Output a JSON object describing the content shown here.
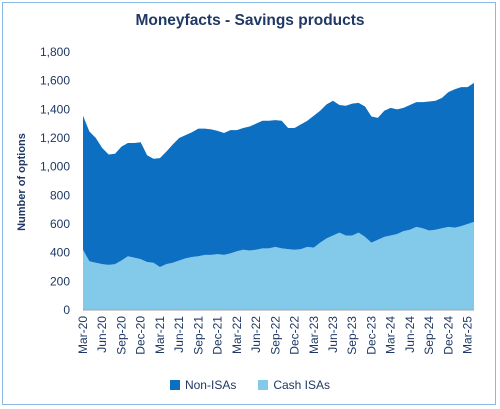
{
  "chart_data": {
    "type": "area",
    "stacked": true,
    "title": "Moneyfacts - Savings products",
    "ylabel": "Number of options",
    "xlabel": "",
    "ylim": [
      0,
      1800
    ],
    "yticks": [
      0,
      200,
      400,
      600,
      800,
      1000,
      1200,
      1400,
      1600,
      1800
    ],
    "ytick_labels": [
      "0",
      "200",
      "400",
      "600",
      "800",
      "1,000",
      "1,200",
      "1,400",
      "1,600",
      "1,800"
    ],
    "x_tick_labels": [
      "Mar-20",
      "Jun-20",
      "Sep-20",
      "Dec-20",
      "Mar-21",
      "Jun-21",
      "Sep-21",
      "Dec-21",
      "Mar-22",
      "Jun-22",
      "Sep-22",
      "Dec-22",
      "Mar-23",
      "Jun-23",
      "Sep-23",
      "Dec-23",
      "Mar-24",
      "Jun-24",
      "Sep-24",
      "Dec-24",
      "Mar-25"
    ],
    "x": [
      "Mar-20",
      "Apr-20",
      "May-20",
      "Jun-20",
      "Jul-20",
      "Aug-20",
      "Sep-20",
      "Oct-20",
      "Nov-20",
      "Dec-20",
      "Jan-21",
      "Feb-21",
      "Mar-21",
      "Apr-21",
      "May-21",
      "Jun-21",
      "Jul-21",
      "Aug-21",
      "Sep-21",
      "Oct-21",
      "Nov-21",
      "Dec-21",
      "Jan-22",
      "Feb-22",
      "Mar-22",
      "Apr-22",
      "May-22",
      "Jun-22",
      "Jul-22",
      "Aug-22",
      "Sep-22",
      "Oct-22",
      "Nov-22",
      "Dec-22",
      "Jan-23",
      "Feb-23",
      "Mar-23",
      "Apr-23",
      "May-23",
      "Jun-23",
      "Jul-23",
      "Aug-23",
      "Sep-23",
      "Oct-23",
      "Nov-23",
      "Dec-23",
      "Jan-24",
      "Feb-24",
      "Mar-24",
      "Apr-24",
      "May-24",
      "Jun-24",
      "Jul-24",
      "Aug-24",
      "Sep-24",
      "Oct-24",
      "Nov-24",
      "Dec-24",
      "Jan-25",
      "Feb-25",
      "Mar-25",
      "Apr-25"
    ],
    "series": [
      {
        "name": "Cash ISAs",
        "color": "#83c9ea",
        "values": [
          420,
          340,
          330,
          320,
          315,
          320,
          345,
          375,
          365,
          355,
          335,
          330,
          300,
          320,
          330,
          345,
          360,
          370,
          375,
          385,
          385,
          390,
          385,
          395,
          410,
          420,
          415,
          420,
          430,
          430,
          440,
          430,
          425,
          420,
          425,
          440,
          435,
          470,
          500,
          520,
          540,
          520,
          520,
          540,
          510,
          470,
          490,
          510,
          520,
          530,
          550,
          560,
          580,
          570,
          555,
          560,
          570,
          580,
          575,
          585,
          600,
          615
        ]
      },
      {
        "name": "Non-ISAs",
        "color": "#0c6fc2",
        "values": [
          935,
          905,
          870,
          810,
          770,
          770,
          795,
          790,
          800,
          815,
          745,
          725,
          760,
          785,
          825,
          855,
          860,
          870,
          890,
          880,
          875,
          860,
          850,
          860,
          845,
          850,
          865,
          880,
          890,
          890,
          885,
          890,
          845,
          850,
          870,
          880,
          920,
          920,
          935,
          940,
          890,
          905,
          920,
          905,
          910,
          880,
          850,
          880,
          890,
          870,
          860,
          870,
          870,
          880,
          900,
          900,
          910,
          940,
          965,
          970,
          955,
          970
        ]
      }
    ],
    "legend": [
      "Non-ISAs",
      "Cash ISAs"
    ],
    "legend_position": "bottom",
    "grid": false
  }
}
